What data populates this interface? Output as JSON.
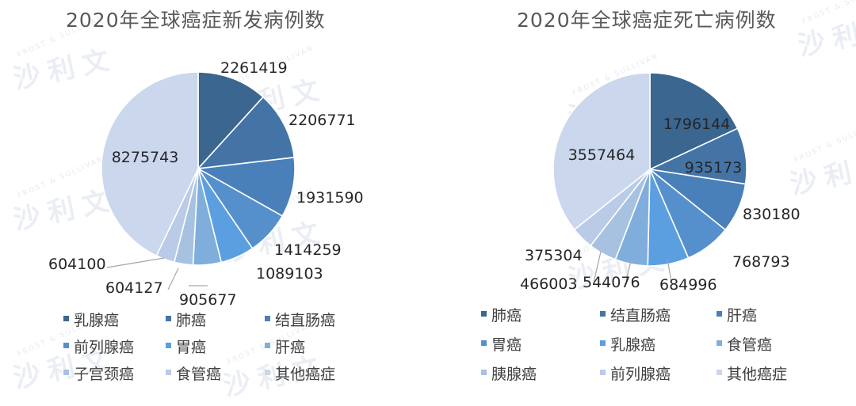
{
  "colors": {
    "palette": [
      "#3A6690",
      "#4474A6",
      "#4A80B9",
      "#5590CC",
      "#5C9FE0",
      "#7FAEDC",
      "#A7C1E1",
      "#BACBE7",
      "#CAD7EC"
    ]
  },
  "watermark": {
    "brand_cn": "沙利文",
    "brand_en": "FROST & SULLIVAN"
  },
  "chart_data": [
    {
      "type": "pie",
      "title": "2020年全球癌症新发病例数",
      "legend_position": "bottom",
      "slices": [
        {
          "label": "乳腺癌",
          "value": 2261419
        },
        {
          "label": "肺癌",
          "value": 2206771
        },
        {
          "label": "结直肠癌",
          "value": 1931590
        },
        {
          "label": "前列腺癌",
          "value": 1414259
        },
        {
          "label": "胃癌",
          "value": 1089103
        },
        {
          "label": "肝癌",
          "value": 905677
        },
        {
          "label": "子宫颈癌",
          "value": 604127
        },
        {
          "label": "食管癌",
          "value": 604100
        },
        {
          "label": "其他癌症",
          "value": 8275743
        }
      ]
    },
    {
      "type": "pie",
      "title": "2020年全球癌症死亡病例数",
      "legend_position": "bottom",
      "slices": [
        {
          "label": "肺癌",
          "value": 1796144
        },
        {
          "label": "结直肠癌",
          "value": 935173
        },
        {
          "label": "肝癌",
          "value": 830180
        },
        {
          "label": "胃癌",
          "value": 768793
        },
        {
          "label": "乳腺癌",
          "value": 684996
        },
        {
          "label": "食管癌",
          "value": 544076
        },
        {
          "label": "胰腺癌",
          "value": 466003
        },
        {
          "label": "前列腺癌",
          "value": 375304
        },
        {
          "label": "其他癌症",
          "value": 3557464
        }
      ]
    }
  ]
}
